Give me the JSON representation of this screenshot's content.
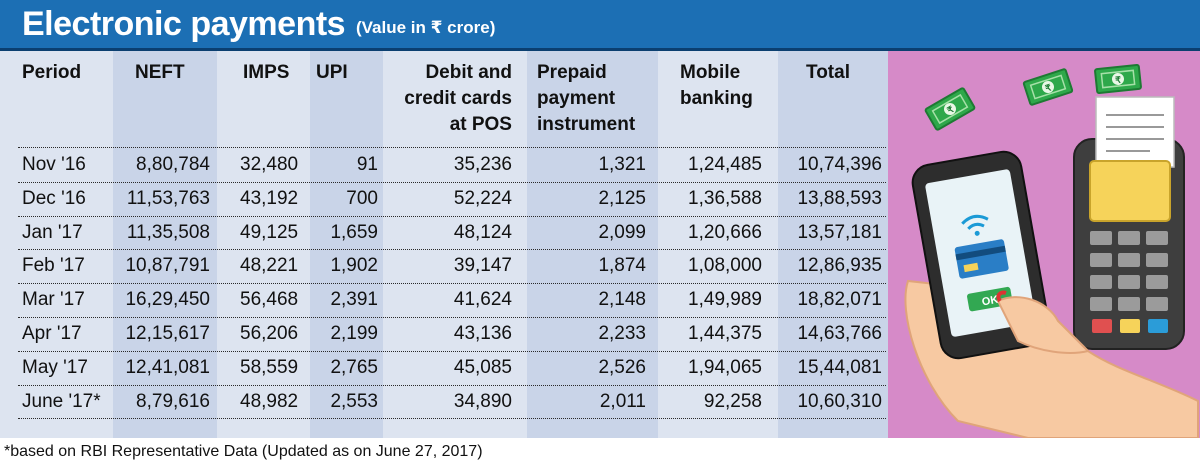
{
  "header": {
    "title": "Electronic payments",
    "subtitle": "(Value in ₹ crore)"
  },
  "chart_data": {
    "type": "table",
    "title": "Electronic payments",
    "subtitle": "(Value in ₹ crore)",
    "columns": [
      "Period",
      "NEFT",
      "IMPS",
      "UPI",
      "Debit and\ncredit cards\nat POS",
      "Prepaid\npayment\ninstrument",
      "Mobile\nbanking",
      "Total"
    ],
    "rows": [
      [
        "Nov '16",
        "8,80,784",
        "32,480",
        "91",
        "35,236",
        "1,321",
        "1,24,485",
        "10,74,396"
      ],
      [
        "Dec '16",
        "11,53,763",
        "43,192",
        "700",
        "52,224",
        "2,125",
        "1,36,588",
        "13,88,593"
      ],
      [
        "Jan '17",
        "11,35,508",
        "49,125",
        "1,659",
        "48,124",
        "2,099",
        "1,20,666",
        "13,57,181"
      ],
      [
        "Feb '17",
        "10,87,791",
        "48,221",
        "1,902",
        "39,147",
        "1,874",
        "1,08,000",
        "12,86,935"
      ],
      [
        "Mar '17",
        "16,29,450",
        "56,468",
        "2,391",
        "41,624",
        "2,148",
        "1,49,989",
        "18,82,071"
      ],
      [
        "Apr '17",
        "12,15,617",
        "56,206",
        "2,199",
        "43,136",
        "2,233",
        "1,44,375",
        "14,63,766"
      ],
      [
        "May '17",
        "12,41,081",
        "58,559",
        "2,765",
        "45,085",
        "2,526",
        "1,94,065",
        "15,44,081"
      ],
      [
        "June '17*",
        "8,79,616",
        "48,982",
        "2,553",
        "34,890",
        "2,011",
        "92,258",
        "10,60,310"
      ]
    ],
    "footnote": "*based on RBI Representative Data (Updated as on June 27, 2017)"
  },
  "illustration": {
    "icons": [
      "rupee-note-icon",
      "payment-terminal-icon",
      "smartphone-icon",
      "wifi-icon",
      "card-icon",
      "hand-icon"
    ],
    "ok_label": "OK",
    "colors": {
      "header_bg": "#1c6fb4",
      "table_bg": "#dde4f0",
      "shaded_column_bg": "#c9d4e8",
      "illustration_bg": "#d68ac8"
    }
  }
}
